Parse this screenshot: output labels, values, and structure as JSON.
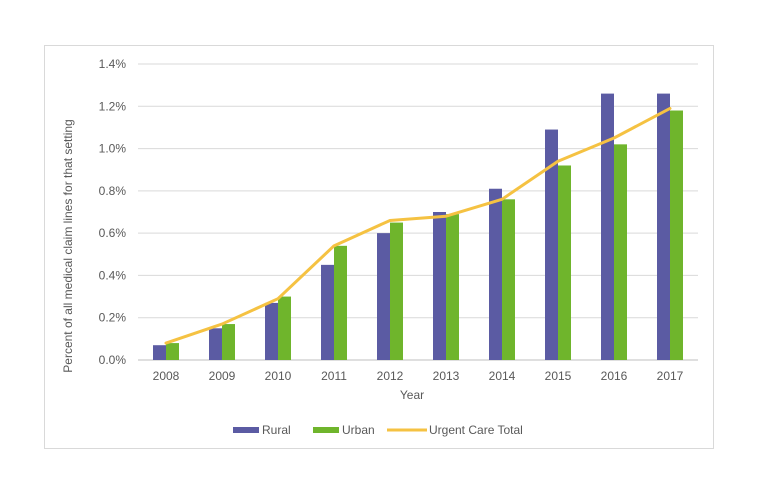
{
  "chart_data": {
    "type": "bar+line",
    "title": "",
    "xlabel": "Year",
    "ylabel": "Percent of all medical claim lines for that setting",
    "ylim": [
      0,
      1.4
    ],
    "yticks": [
      0,
      0.2,
      0.4,
      0.6,
      0.8,
      1.0,
      1.2,
      1.4
    ],
    "ytick_labels": [
      "0.0%",
      "0.2%",
      "0.4%",
      "0.6%",
      "0.8%",
      "1.0%",
      "1.2%",
      "1.4%"
    ],
    "categories": [
      "2008",
      "2009",
      "2010",
      "2011",
      "2012",
      "2013",
      "2014",
      "2015",
      "2016",
      "2017"
    ],
    "grid": true,
    "legend_position": "bottom",
    "series": [
      {
        "name": "Rural",
        "kind": "bar",
        "color": "#5b5ba3",
        "values": [
          0.07,
          0.15,
          0.27,
          0.45,
          0.6,
          0.7,
          0.81,
          1.09,
          1.26,
          1.26
        ]
      },
      {
        "name": "Urban",
        "kind": "bar",
        "color": "#6fb52c",
        "values": [
          0.08,
          0.17,
          0.3,
          0.54,
          0.65,
          0.69,
          0.76,
          0.92,
          1.02,
          1.18
        ]
      },
      {
        "name": "Urgent Care Total",
        "kind": "line",
        "color": "#f5c242",
        "values": [
          0.08,
          0.17,
          0.29,
          0.54,
          0.66,
          0.68,
          0.76,
          0.94,
          1.05,
          1.19
        ]
      }
    ]
  }
}
